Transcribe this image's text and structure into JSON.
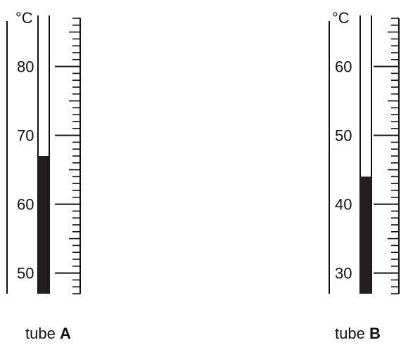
{
  "unit_label": "°C",
  "thermometers": [
    {
      "id": "A",
      "caption_prefix": "tube ",
      "caption_letter": "A",
      "scale_labels": [
        "80",
        "70",
        "60",
        "50"
      ],
      "label_values": [
        80,
        70,
        60,
        50
      ],
      "reading": 67,
      "scale_min": 47,
      "scale_max": 88
    },
    {
      "id": "B",
      "caption_prefix": "tube ",
      "caption_letter": "B",
      "scale_labels": [
        "60",
        "50",
        "40",
        "30"
      ],
      "label_values": [
        60,
        50,
        40,
        30
      ],
      "reading": 44,
      "scale_min": 27,
      "scale_max": 68
    }
  ]
}
